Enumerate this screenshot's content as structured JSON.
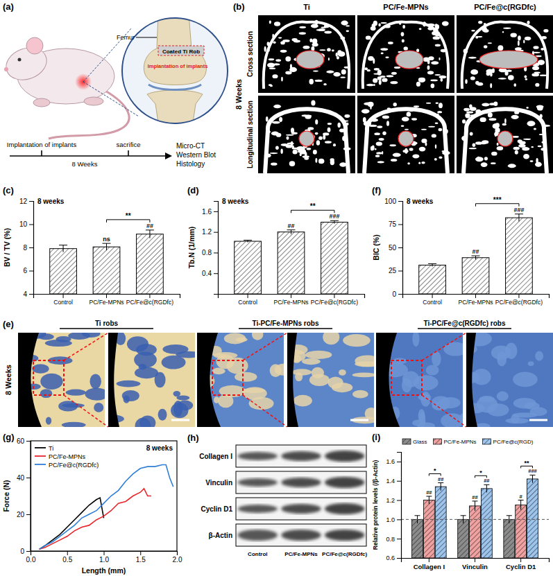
{
  "diagram": {
    "label": "(a)",
    "femur": "Femur",
    "implant": "Coated Ti Rob",
    "implant_site": "Implantation of implants",
    "timeline": {
      "start": "Implantation of implants",
      "mid": "sacrifice",
      "duration": "8 Weeks",
      "end": [
        "Micro-CT",
        "Western Blot",
        "Histology"
      ]
    }
  },
  "micro_ct": {
    "label": "(b)",
    "columns": [
      "Ti",
      "PC/Fe-MPNs",
      "PC/Fe@c(RGDfc)"
    ],
    "rows": [
      "Cross section",
      "Longitudinal section"
    ],
    "time": "8 Weeks"
  },
  "histology": {
    "label": "(e)",
    "columns": [
      "Ti robs",
      "Ti-PC/Fe-MPNs robs",
      "Ti-PC/Fe@c(RGDfc) robs"
    ],
    "time": "8 Weeks"
  },
  "western_blot": {
    "label": "(h)",
    "proteins": [
      "Collagen I",
      "Vinculin",
      "Cyclin D1",
      "β-Actin"
    ],
    "groups": [
      "Control",
      "PC/Fe-MPNs",
      "PC/Fe@c(RGDfc)"
    ]
  },
  "chart_data": [
    {
      "label": "(c)",
      "type": "bar",
      "title": "8 weeks",
      "y_label": "BV / TV (%)",
      "categories": [
        "Control",
        "PC/Fe-MPNs",
        "PC/Fe@c(RGDfc)"
      ],
      "values": [
        7.9,
        8.05,
        9.15
      ],
      "errors": [
        0.3,
        0.3,
        0.35
      ],
      "color": "#ffffff",
      "ylim": [
        4,
        12
      ],
      "yticks": [
        4,
        6,
        8,
        10,
        12
      ],
      "significance": [
        null,
        "ns",
        "##"
      ],
      "comparison": {
        "text": "**",
        "between": [
          "PC/Fe-MPNs",
          "PC/Fe@c(RGDfc)"
        ]
      }
    },
    {
      "label": "(d)",
      "type": "bar",
      "title": "8 weeks",
      "y_label": "Tb.N (1/mm)",
      "categories": [
        "Control",
        "PC/Fe-MPNs",
        "PC/Fe@c(RGDfc)"
      ],
      "values": [
        1.02,
        1.2,
        1.39
      ],
      "errors": [
        0.02,
        0.04,
        0.03
      ],
      "color": "#ffffff",
      "ylim": [
        0,
        1.8
      ],
      "yticks": [
        0.4,
        0.8,
        1.2,
        1.6
      ],
      "significance": [
        null,
        "##",
        "###"
      ],
      "comparison": {
        "text": "**",
        "between": [
          "PC/Fe-MPNs",
          "PC/Fe@c(RGDfc)"
        ]
      }
    },
    {
      "label": "(f)",
      "type": "bar",
      "title": "8 weeks",
      "y_label": "BIC (%)",
      "categories": [
        "Control",
        "PC/Fe-MPNs",
        "PC/Fe@c(RGDfc)"
      ],
      "values": [
        31,
        39,
        82
      ],
      "errors": [
        1.5,
        2,
        4
      ],
      "color": "#ffffff",
      "ylim": [
        0,
        100
      ],
      "yticks": [
        0,
        25,
        50,
        75,
        100
      ],
      "significance": [
        null,
        "##",
        "###"
      ],
      "comparison": {
        "text": "***",
        "between": [
          "PC/Fe-MPNs",
          "PC/Fe@c(RGDfc)"
        ]
      }
    },
    {
      "label": "(g)",
      "type": "line",
      "title": "8 weeks",
      "x_label": "Length (mm)",
      "y_label": "Force (N)",
      "legend": "upper left",
      "xlim": [
        0,
        2.0
      ],
      "xticks": [
        {
          "value": 0,
          "label": "0.0"
        },
        {
          "value": 0.5,
          "label": "0.5"
        },
        {
          "value": 1.0,
          "label": "1.0"
        },
        {
          "value": 1.5,
          "label": "1.5"
        },
        {
          "value": 2.0,
          "label": "2.0"
        }
      ],
      "ylim": [
        0,
        60
      ],
      "yticks": [
        0,
        20,
        40,
        60
      ],
      "series": [
        {
          "name": "Ti",
          "color": "#000000",
          "x": [
            0.12,
            0.2,
            0.3,
            0.4,
            0.5,
            0.6,
            0.7,
            0.8,
            0.9,
            0.95,
            1.0
          ],
          "values": [
            1,
            3,
            6,
            9,
            13,
            17,
            21,
            25,
            28,
            29,
            18
          ]
        },
        {
          "name": "PC/Fe-MPNs",
          "color": "#e8262b",
          "x": [
            0.12,
            0.2,
            0.3,
            0.4,
            0.5,
            0.6,
            0.7,
            0.8,
            0.9,
            1.0,
            1.1,
            1.2,
            1.3,
            1.4,
            1.5,
            1.55,
            1.6,
            1.65
          ],
          "values": [
            1,
            2,
            4,
            6,
            8,
            11,
            13,
            14,
            17,
            19,
            22,
            26,
            27,
            30,
            32,
            34,
            30,
            30
          ]
        },
        {
          "name": "PC/Fe@c(RGDfc)",
          "color": "#2f7fd6",
          "x": [
            0.12,
            0.2,
            0.3,
            0.4,
            0.5,
            0.6,
            0.7,
            0.8,
            0.9,
            1.0,
            1.1,
            1.2,
            1.3,
            1.4,
            1.5,
            1.6,
            1.7,
            1.8,
            1.85,
            1.9,
            1.95
          ],
          "values": [
            1,
            3,
            5,
            8,
            11,
            14,
            18,
            20,
            22,
            26,
            30,
            33,
            38,
            42,
            45,
            46,
            46,
            47,
            47,
            40,
            35
          ]
        }
      ]
    },
    {
      "label": "(i)",
      "type": "bar",
      "y_label": "Relative protein levels (/β-Actin)",
      "categories": [
        "Collagen I",
        "Vinculin",
        "Cyclin D1"
      ],
      "ylim": [
        0.6,
        1.7
      ],
      "yticks": [
        0.6,
        0.8,
        {
          "value": 1.0,
          "label": "1.0"
        },
        1.2,
        1.4,
        1.6
      ],
      "reference_line": 1.0,
      "legend": "upper left",
      "series": [
        {
          "name": "Glass",
          "color": "#8c8c8c",
          "values": [
            1.0,
            1.0,
            1.0
          ],
          "errors": [
            0.04,
            0.04,
            0.04
          ],
          "significance": [
            null,
            null,
            null
          ]
        },
        {
          "name": "PC/Fe-MPNs",
          "color": "#f2a1a1",
          "values": [
            1.2,
            1.14,
            1.15
          ],
          "errors": [
            0.04,
            0.05,
            0.05
          ],
          "significance": [
            "##",
            "##",
            "#"
          ]
        },
        {
          "name": "PC/Fe@c(RGD)",
          "color": "#9cc4ec",
          "values": [
            1.34,
            1.32,
            1.42
          ],
          "errors": [
            0.04,
            0.04,
            0.04
          ],
          "significance": [
            "##",
            "##",
            "###"
          ]
        }
      ],
      "comparisons": {
        "between": [
          "PC/Fe-MPNs",
          "PC/Fe@c(RGD)"
        ],
        "labels": [
          "*",
          "*",
          "**"
        ]
      }
    }
  ]
}
